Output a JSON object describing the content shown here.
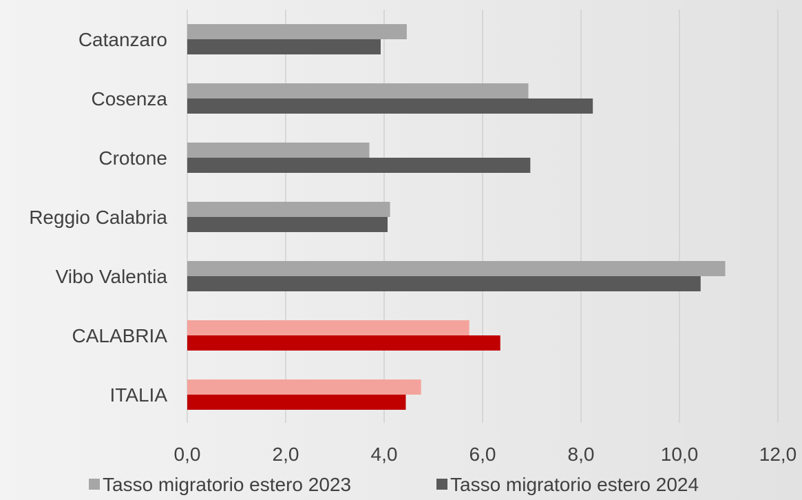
{
  "chart_data": {
    "type": "bar",
    "orientation": "horizontal",
    "categories": [
      "Catanzaro",
      "Cosenza",
      "Crotone",
      "Reggio Calabria",
      "Vibo Valentia",
      "CALABRIA",
      "ITALIA"
    ],
    "series": [
      {
        "name": "Tasso migratorio estero 2023",
        "values": [
          4.46,
          6.93,
          3.7,
          4.12,
          10.93,
          5.73,
          4.75
        ],
        "color": "#a6a6a6",
        "highlight_color": "#f4a39c"
      },
      {
        "name": "Tasso migratorio estero 2024",
        "values": [
          3.93,
          8.24,
          6.97,
          4.07,
          10.43,
          6.36,
          4.44
        ],
        "color": "#595959",
        "highlight_color": "#c00000"
      }
    ],
    "highlight_categories": [
      "CALABRIA",
      "ITALIA"
    ],
    "xlim": [
      0,
      12
    ],
    "xticks": [
      0,
      2,
      4,
      6,
      8,
      10,
      12
    ],
    "xtick_labels": [
      "0,0",
      "2,0",
      "4,0",
      "6,0",
      "8,0",
      "10,0",
      "12,0"
    ],
    "grid": "vertical",
    "legend_position": "bottom",
    "title": "",
    "xlabel": "",
    "ylabel": ""
  }
}
